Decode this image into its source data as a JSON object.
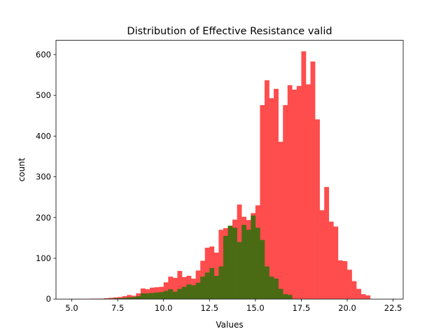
{
  "chart_data": {
    "type": "bar",
    "title": "Distribution of Effective Resistance valid",
    "xlabel": "Values",
    "ylabel": "count",
    "xlim": [
      4.14,
      23.05
    ],
    "ylim": [
      0,
      635
    ],
    "x_ticks": [
      5.0,
      7.5,
      10.0,
      12.5,
      15.0,
      17.5,
      20.0,
      22.5
    ],
    "x_tick_labels": [
      "5.0",
      "7.5",
      "10.0",
      "12.5",
      "15.0",
      "17.5",
      "20.0",
      "22.5"
    ],
    "y_ticks": [
      0,
      100,
      200,
      300,
      400,
      500,
      600
    ],
    "y_tick_labels": [
      "0",
      "100",
      "200",
      "300",
      "400",
      "500",
      "600"
    ],
    "grid": false,
    "series": [
      {
        "color": "#ff4d4d",
        "bins": [
          [
            5.0,
            5.25,
            0.5
          ],
          [
            5.25,
            5.5,
            0.5
          ],
          [
            5.5,
            5.75,
            0.5
          ],
          [
            5.75,
            6.0,
            0.5
          ],
          [
            6.0,
            6.25,
            1
          ],
          [
            6.25,
            6.5,
            1
          ],
          [
            6.5,
            6.75,
            1
          ],
          [
            6.75,
            7.0,
            2
          ],
          [
            7.0,
            7.25,
            3
          ],
          [
            7.25,
            7.5,
            4
          ],
          [
            7.5,
            7.75,
            5
          ],
          [
            7.75,
            8.0,
            7
          ],
          [
            8.0,
            8.25,
            10
          ],
          [
            8.25,
            8.5,
            8
          ],
          [
            8.5,
            8.75,
            14
          ],
          [
            8.75,
            9.0,
            26
          ],
          [
            9.0,
            9.25,
            24
          ],
          [
            9.25,
            9.5,
            28
          ],
          [
            9.5,
            9.75,
            29
          ],
          [
            9.75,
            10.0,
            30
          ],
          [
            10.0,
            10.25,
            41
          ],
          [
            10.25,
            10.5,
            55
          ],
          [
            10.5,
            10.75,
            52
          ],
          [
            10.75,
            11.0,
            69
          ],
          [
            11.0,
            11.25,
            54
          ],
          [
            11.25,
            11.5,
            57
          ],
          [
            11.5,
            11.75,
            50
          ],
          [
            11.75,
            12.0,
            70
          ],
          [
            12.0,
            12.25,
            94
          ],
          [
            12.25,
            12.5,
            126
          ],
          [
            12.5,
            12.75,
            129
          ],
          [
            12.75,
            13.0,
            114
          ],
          [
            13.0,
            13.25,
            170
          ],
          [
            13.25,
            13.5,
            174
          ],
          [
            13.5,
            13.75,
            153
          ],
          [
            13.75,
            14.0,
            195
          ],
          [
            14.0,
            14.25,
            232
          ],
          [
            14.25,
            14.5,
            202
          ],
          [
            14.5,
            14.75,
            194
          ],
          [
            14.75,
            15.0,
            211
          ],
          [
            15.0,
            15.25,
            230
          ],
          [
            15.25,
            15.5,
            476
          ],
          [
            15.5,
            15.75,
            537
          ],
          [
            15.75,
            16.0,
            493
          ],
          [
            16.0,
            16.25,
            516
          ],
          [
            16.25,
            16.5,
            386
          ],
          [
            16.5,
            16.75,
            476
          ],
          [
            16.75,
            17.0,
            525
          ],
          [
            17.0,
            17.25,
            514
          ],
          [
            17.25,
            17.5,
            523
          ],
          [
            17.5,
            17.75,
            608
          ],
          [
            17.75,
            18.0,
            527
          ],
          [
            18.0,
            18.25,
            583
          ],
          [
            18.25,
            18.5,
            441
          ],
          [
            18.5,
            18.75,
            218
          ],
          [
            18.75,
            19.0,
            275
          ],
          [
            19.0,
            19.25,
            190
          ],
          [
            19.25,
            19.5,
            178
          ],
          [
            19.5,
            19.75,
            95
          ],
          [
            19.75,
            20.0,
            93
          ],
          [
            20.0,
            20.25,
            72
          ],
          [
            20.25,
            20.5,
            44
          ],
          [
            20.5,
            20.75,
            25
          ],
          [
            20.75,
            21.0,
            12
          ],
          [
            21.0,
            21.25,
            9
          ]
        ]
      },
      {
        "color": "#4a6b14",
        "bins": [
          [
            6.5,
            6.75,
            0.5
          ],
          [
            6.75,
            7.0,
            1
          ],
          [
            7.0,
            7.25,
            1
          ],
          [
            7.25,
            7.5,
            2
          ],
          [
            7.5,
            7.75,
            2
          ],
          [
            7.75,
            8.0,
            3
          ],
          [
            8.0,
            8.25,
            4
          ],
          [
            8.25,
            8.5,
            5
          ],
          [
            8.5,
            8.75,
            7
          ],
          [
            8.75,
            9.0,
            14
          ],
          [
            9.0,
            9.25,
            14
          ],
          [
            9.25,
            9.5,
            15
          ],
          [
            9.5,
            9.75,
            16
          ],
          [
            9.75,
            10.0,
            17
          ],
          [
            10.0,
            10.25,
            20
          ],
          [
            10.25,
            10.5,
            24
          ],
          [
            10.5,
            10.75,
            18
          ],
          [
            10.75,
            11.0,
            25
          ],
          [
            11.0,
            11.25,
            30
          ],
          [
            11.25,
            11.5,
            36
          ],
          [
            11.5,
            11.75,
            34
          ],
          [
            11.75,
            12.0,
            40
          ],
          [
            12.0,
            12.25,
            55
          ],
          [
            12.25,
            12.5,
            65
          ],
          [
            12.5,
            12.75,
            76
          ],
          [
            12.75,
            13.0,
            57
          ],
          [
            13.0,
            13.25,
            80
          ],
          [
            13.25,
            13.5,
            155
          ],
          [
            13.5,
            13.75,
            180
          ],
          [
            13.75,
            14.0,
            175
          ],
          [
            14.0,
            14.25,
            140
          ],
          [
            14.25,
            14.5,
            182
          ],
          [
            14.5,
            14.75,
            170
          ],
          [
            14.75,
            15.0,
            205
          ],
          [
            15.0,
            15.25,
            175
          ],
          [
            15.25,
            15.5,
            145
          ],
          [
            15.5,
            15.75,
            80
          ],
          [
            15.75,
            16.0,
            55
          ],
          [
            16.0,
            16.25,
            50
          ],
          [
            16.25,
            16.5,
            25
          ],
          [
            16.5,
            16.75,
            12
          ],
          [
            16.75,
            17.0,
            10
          ]
        ]
      }
    ]
  }
}
